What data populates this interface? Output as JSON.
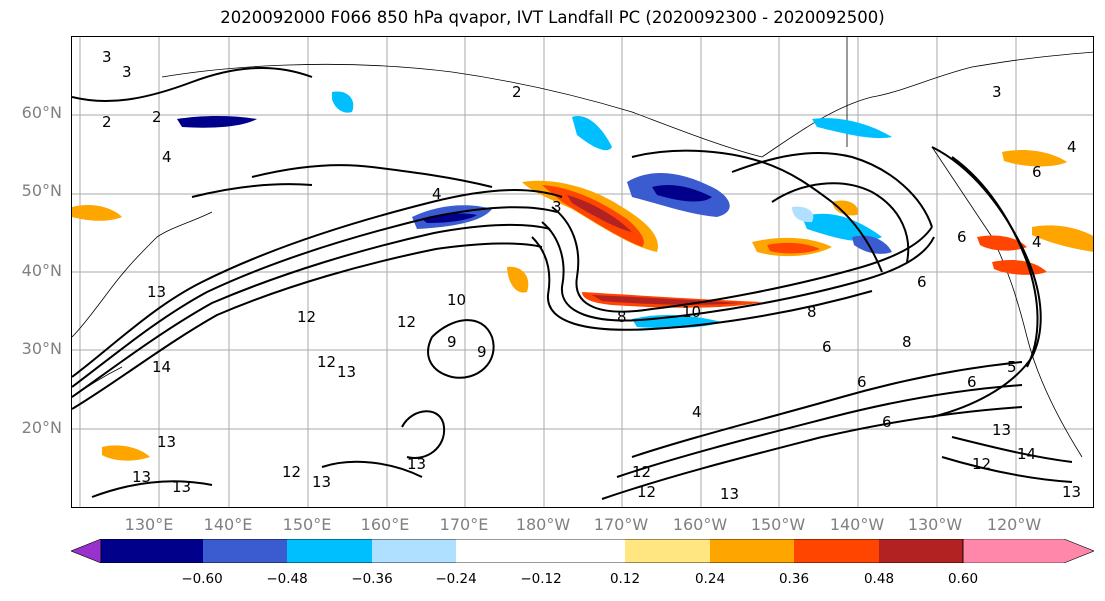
{
  "title": "2020092000 F066 850 hPa qvapor, IVT Landfall PC (2020092300 - 2020092500)",
  "map": {
    "lat_labels": [
      "60°N",
      "50°N",
      "40°N",
      "30°N",
      "20°N"
    ],
    "lon_labels": [
      "130°E",
      "140°E",
      "150°E",
      "160°E",
      "170°E",
      "180°W",
      "170°W",
      "160°W",
      "150°W",
      "140°W",
      "130°W",
      "120°W"
    ],
    "contour_labels": [
      "3",
      "3",
      "2",
      "2",
      "3",
      "2",
      "4",
      "3",
      "4",
      "6",
      "4",
      "4",
      "6",
      "6",
      "5",
      "13",
      "12",
      "12",
      "10",
      "8",
      "9",
      "9",
      "10",
      "8",
      "6",
      "6",
      "8",
      "6",
      "12",
      "13",
      "14",
      "13",
      "13",
      "13",
      "12",
      "13",
      "12",
      "13",
      "14",
      "12",
      "13",
      "13",
      "12",
      "13",
      "6",
      "4"
    ]
  },
  "colorbar": {
    "colors": [
      "#9932cc",
      "#00008b",
      "#3b5bd0",
      "#00bfff",
      "#b0e0ff",
      "#ffffff",
      "#ffffff",
      "#ffe680",
      "#ffa500",
      "#ff4500",
      "#b22222",
      "#ff88aa"
    ],
    "ticks": [
      "−0.60",
      "−0.48",
      "−0.36",
      "−0.24",
      "−0.12",
      "0.12",
      "0.24",
      "0.36",
      "0.48",
      "0.60"
    ]
  }
}
